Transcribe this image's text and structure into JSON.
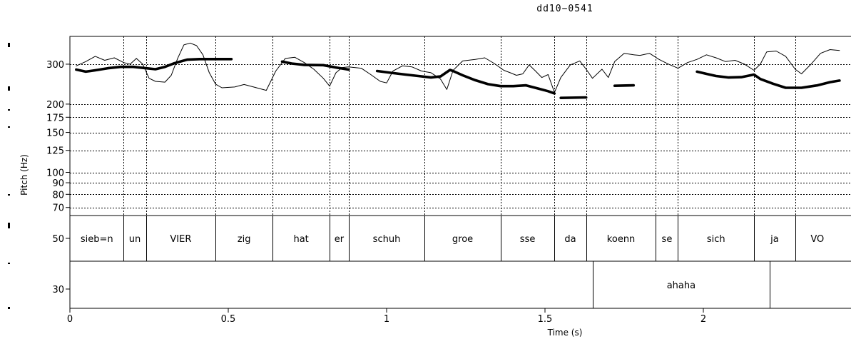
{
  "figure_title": "dd10−0541",
  "chart_data": {
    "type": "line",
    "title": "dd10−0541",
    "xlabel": "Time (s)",
    "ylabel": "Pitch (Hz)",
    "xlim": [
      0,
      2.43
    ],
    "ylim": [
      60,
      370
    ],
    "y_scale": "log",
    "grid": true,
    "x_ticks": [
      0,
      0.5,
      1,
      1.5,
      2
    ],
    "x_tick_labels": [
      "0",
      "0.5",
      "1",
      "1.5",
      "2"
    ],
    "y_ticks": [
      70,
      80,
      90,
      100,
      125,
      150,
      175,
      200,
      300
    ],
    "y_tick_labels": [
      "70",
      "80",
      "90",
      "100",
      "125",
      "150",
      "175",
      "200",
      "300"
    ],
    "tier_labels": [
      "50",
      "30"
    ],
    "series": [
      {
        "style": "thin",
        "segments": [
          [
            [
              0.02,
              295
            ],
            [
              0.05,
              308
            ],
            [
              0.08,
              325
            ],
            [
              0.11,
              312
            ],
            [
              0.14,
              320
            ],
            [
              0.17,
              305
            ],
            [
              0.19,
              300
            ],
            [
              0.21,
              318
            ],
            [
              0.23,
              300
            ],
            [
              0.25,
              260
            ],
            [
              0.27,
              252
            ],
            [
              0.3,
              250
            ],
            [
              0.32,
              268
            ],
            [
              0.34,
              318
            ],
            [
              0.36,
              365
            ],
            [
              0.38,
              372
            ],
            [
              0.4,
              362
            ],
            [
              0.42,
              330
            ],
            [
              0.44,
              275
            ],
            [
              0.46,
              245
            ],
            [
              0.48,
              236
            ],
            [
              0.52,
              238
            ],
            [
              0.55,
              244
            ],
            [
              0.58,
              238
            ],
            [
              0.62,
              230
            ],
            [
              0.65,
              280
            ],
            [
              0.68,
              318
            ],
            [
              0.71,
              322
            ],
            [
              0.74,
              305
            ],
            [
              0.77,
              285
            ],
            [
              0.8,
              260
            ],
            [
              0.82,
              240
            ],
            [
              0.84,
              275
            ],
            [
              0.86,
              290
            ],
            [
              0.88,
              292
            ],
            [
              0.92,
              288
            ],
            [
              0.95,
              270
            ],
            [
              0.98,
              252
            ],
            [
              1.0,
              248
            ],
            [
              1.02,
              280
            ],
            [
              1.05,
              295
            ],
            [
              1.08,
              292
            ],
            [
              1.11,
              280
            ],
            [
              1.14,
              275
            ],
            [
              1.17,
              258
            ],
            [
              1.19,
              232
            ],
            [
              1.21,
              282
            ],
            [
              1.24,
              310
            ],
            [
              1.28,
              315
            ],
            [
              1.31,
              320
            ],
            [
              1.34,
              302
            ],
            [
              1.37,
              282
            ],
            [
              1.39,
              275
            ],
            [
              1.41,
              268
            ],
            [
              1.43,
              272
            ],
            [
              1.45,
              298
            ],
            [
              1.47,
              280
            ],
            [
              1.49,
              262
            ],
            [
              1.51,
              270
            ],
            [
              1.53,
              225
            ],
            [
              1.55,
              262
            ],
            [
              1.58,
              298
            ],
            [
              1.61,
              310
            ],
            [
              1.63,
              285
            ],
            [
              1.65,
              260
            ],
            [
              1.68,
              285
            ],
            [
              1.7,
              262
            ],
            [
              1.72,
              308
            ],
            [
              1.75,
              335
            ],
            [
              1.78,
              330
            ],
            [
              1.8,
              328
            ],
            [
              1.83,
              335
            ],
            [
              1.86,
              315
            ],
            [
              1.89,
              300
            ],
            [
              1.92,
              288
            ],
            [
              1.95,
              305
            ],
            [
              1.98,
              315
            ],
            [
              2.01,
              330
            ],
            [
              2.04,
              320
            ],
            [
              2.07,
              308
            ],
            [
              2.1,
              312
            ],
            [
              2.13,
              300
            ],
            [
              2.16,
              282
            ],
            [
              2.18,
              300
            ],
            [
              2.2,
              340
            ],
            [
              2.23,
              343
            ],
            [
              2.26,
              325
            ],
            [
              2.29,
              285
            ],
            [
              2.31,
              272
            ],
            [
              2.34,
              300
            ],
            [
              2.37,
              335
            ],
            [
              2.4,
              348
            ],
            [
              2.43,
              345
            ]
          ]
        ]
      },
      {
        "style": "thick",
        "segments": [
          [
            [
              0.02,
              284
            ],
            [
              0.05,
              278
            ],
            [
              0.08,
              282
            ],
            [
              0.12,
              288
            ],
            [
              0.16,
              292
            ],
            [
              0.2,
              292
            ],
            [
              0.24,
              288
            ],
            [
              0.27,
              285
            ],
            [
              0.3,
              292
            ],
            [
              0.33,
              303
            ],
            [
              0.37,
              314
            ],
            [
              0.41,
              316
            ],
            [
              0.46,
              316
            ],
            [
              0.51,
              316
            ]
          ],
          [
            [
              0.67,
              308
            ],
            [
              0.7,
              302
            ],
            [
              0.74,
              298
            ],
            [
              0.8,
              297
            ],
            [
              0.84,
              290
            ],
            [
              0.88,
              284
            ]
          ],
          [
            [
              0.97,
              280
            ],
            [
              1.02,
              274
            ],
            [
              1.06,
              270
            ],
            [
              1.1,
              266
            ],
            [
              1.14,
              262
            ],
            [
              1.17,
              265
            ],
            [
              1.2,
              283
            ],
            [
              1.21,
              280
            ],
            [
              1.24,
              268
            ],
            [
              1.28,
              255
            ],
            [
              1.32,
              245
            ],
            [
              1.36,
              240
            ],
            [
              1.4,
              240
            ],
            [
              1.44,
              242
            ],
            [
              1.48,
              234
            ],
            [
              1.51,
              228
            ],
            [
              1.53,
              223
            ]
          ],
          [
            [
              1.55,
              213
            ],
            [
              1.63,
              214
            ]
          ],
          [
            [
              1.72,
              241
            ],
            [
              1.78,
              242
            ]
          ],
          [
            [
              1.98,
              278
            ],
            [
              2.01,
              272
            ],
            [
              2.04,
              266
            ],
            [
              2.08,
              262
            ],
            [
              2.12,
              263
            ],
            [
              2.16,
              270
            ],
            [
              2.18,
              258
            ],
            [
              2.22,
              246
            ],
            [
              2.26,
              236
            ],
            [
              2.31,
              236
            ],
            [
              2.36,
              242
            ],
            [
              2.4,
              250
            ],
            [
              2.43,
              254
            ]
          ]
        ]
      }
    ],
    "annotation_tiers": [
      {
        "tier": 1,
        "intervals": [
          {
            "label": "sieb=n",
            "start": 0.0,
            "end": 0.17
          },
          {
            "label": "un",
            "start": 0.17,
            "end": 0.24
          },
          {
            "label": "VIER",
            "start": 0.24,
            "end": 0.46
          },
          {
            "label": "zig",
            "start": 0.46,
            "end": 0.64
          },
          {
            "label": "hat",
            "start": 0.64,
            "end": 0.82
          },
          {
            "label": "er",
            "start": 0.82,
            "end": 0.88
          },
          {
            "label": "schuh",
            "start": 0.88,
            "end": 1.12
          },
          {
            "label": "groe",
            "start": 1.12,
            "end": 1.36
          },
          {
            "label": "sse",
            "start": 1.36,
            "end": 1.53
          },
          {
            "label": "da",
            "start": 1.53,
            "end": 1.63
          },
          {
            "label": "koenn",
            "start": 1.63,
            "end": 1.85
          },
          {
            "label": "se",
            "start": 1.85,
            "end": 1.92
          },
          {
            "label": "sich",
            "start": 1.92,
            "end": 2.16
          },
          {
            "label": "ja",
            "start": 2.16,
            "end": 2.29
          },
          {
            "label": "VO",
            "start": 2.29,
            "end": 2.43
          }
        ]
      },
      {
        "tier": 2,
        "intervals": [
          {
            "label": "ahaha",
            "start": 1.65,
            "end": 2.21
          }
        ]
      }
    ]
  }
}
